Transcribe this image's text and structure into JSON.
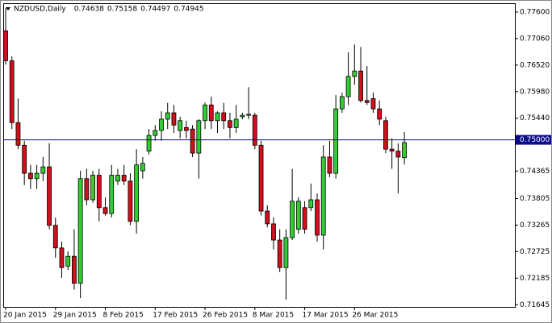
{
  "chart_data": {
    "type": "candlestick",
    "title": "NZDUSD,Daily",
    "categories": [
      "20 Jan 2015",
      null,
      null,
      null,
      null,
      null,
      null,
      null,
      "29 Jan 2015",
      null,
      null,
      null,
      null,
      null,
      null,
      null,
      "8 Feb 2015",
      null,
      null,
      null,
      null,
      null,
      null,
      null,
      "17 Feb 2015",
      null,
      null,
      null,
      null,
      null,
      null,
      null,
      "26 Feb 2015",
      null,
      null,
      null,
      null,
      null,
      null,
      null,
      "8 Mar 2015",
      null,
      null,
      null,
      null,
      null,
      null,
      null,
      "17 Mar 2015",
      null,
      null,
      null,
      null,
      null,
      null,
      null,
      "26 Mar 2015",
      null,
      null,
      null,
      null,
      null,
      null,
      null,
      null
    ],
    "open": [
      0.7722,
      0.7661,
      0.7535,
      0.7489,
      0.7432,
      0.7421,
      0.7432,
      0.7445,
      0.7326,
      0.728,
      0.7243,
      0.7263,
      0.7208,
      0.7421,
      0.7378,
      0.7428,
      0.7362,
      0.735,
      0.7416,
      0.7428,
      0.7416,
      0.7334,
      0.7437,
      0.7477,
      0.7509,
      0.7519,
      0.7542,
      0.7555,
      0.7519,
      0.7525,
      0.7522,
      0.7473,
      0.7539,
      0.7571,
      0.7539,
      0.7555,
      0.7539,
      0.7525,
      0.7547,
      0.755,
      0.755,
      0.7489,
      0.7355,
      0.7329,
      0.7296,
      0.724,
      0.7301,
      0.7318,
      0.7362,
      0.7362,
      0.7378,
      0.7306,
      0.7465,
      0.7432,
      0.7563,
      0.7588,
      0.7629,
      0.764,
      0.758,
      0.7584,
      0.7563,
      0.7539,
      0.7481,
      0.7477,
      0.74638
    ],
    "high": [
      0.7768,
      0.767,
      0.7584,
      0.7498,
      0.7449,
      0.7449,
      0.7465,
      0.7493,
      0.7342,
      0.7293,
      0.7273,
      0.7318,
      0.7437,
      0.7441,
      0.7437,
      0.7441,
      0.7383,
      0.7449,
      0.7441,
      0.7449,
      0.7432,
      0.7481,
      0.7465,
      0.7522,
      0.753,
      0.7558,
      0.7575,
      0.7571,
      0.7547,
      0.7539,
      0.753,
      0.7542,
      0.7576,
      0.7588,
      0.7558,
      0.7575,
      0.7555,
      0.7571,
      0.7555,
      0.7607,
      0.7555,
      0.7498,
      0.7367,
      0.7342,
      0.7318,
      0.7318,
      0.7441,
      0.7383,
      0.7375,
      0.7411,
      0.7391,
      0.7489,
      0.7498,
      0.7591,
      0.7596,
      0.7678,
      0.7694,
      0.7689,
      0.765,
      0.7596,
      0.758,
      0.7547,
      0.7503,
      0.7493,
      0.75158
    ],
    "low": [
      0.7653,
      0.7522,
      0.7481,
      0.7408,
      0.74,
      0.74,
      0.7416,
      0.7318,
      0.726,
      0.7219,
      0.7235,
      0.7195,
      0.7178,
      0.7367,
      0.7372,
      0.7334,
      0.7346,
      0.7342,
      0.7408,
      0.7408,
      0.7326,
      0.7309,
      0.7421,
      0.747,
      0.7498,
      0.7498,
      0.7522,
      0.7514,
      0.7503,
      0.7503,
      0.7465,
      0.7421,
      0.7522,
      0.7522,
      0.7514,
      0.7522,
      0.7503,
      0.7514,
      0.7542,
      0.7542,
      0.7481,
      0.7346,
      0.7322,
      0.7277,
      0.7231,
      0.7175,
      0.7296,
      0.7309,
      0.7309,
      0.7355,
      0.7293,
      0.7277,
      0.7424,
      0.7421,
      0.7555,
      0.7571,
      0.7612,
      0.7576,
      0.7571,
      0.7555,
      0.753,
      0.7473,
      0.7441,
      0.7391,
      0.74497
    ],
    "close": [
      0.7661,
      0.7535,
      0.7489,
      0.7432,
      0.7421,
      0.7432,
      0.7445,
      0.7326,
      0.728,
      0.724,
      0.7263,
      0.7208,
      0.7421,
      0.7378,
      0.7428,
      0.7362,
      0.735,
      0.7428,
      0.7428,
      0.7416,
      0.7334,
      0.7449,
      0.7452,
      0.7509,
      0.7519,
      0.7542,
      0.7555,
      0.753,
      0.7539,
      0.7519,
      0.7473,
      0.7539,
      0.7571,
      0.7539,
      0.7555,
      0.7539,
      0.7525,
      0.7542,
      0.755,
      0.7552,
      0.7489,
      0.7355,
      0.7329,
      0.7296,
      0.724,
      0.7301,
      0.7375,
      0.7375,
      0.7318,
      0.7378,
      0.7306,
      0.7465,
      0.7432,
      0.7563,
      0.7588,
      0.7629,
      0.764,
      0.758,
      0.7576,
      0.7563,
      0.7542,
      0.7481,
      0.7477,
      0.7465,
      0.74945
    ],
    "up_color": "#32cd32",
    "down_color": "#d0101c",
    "ylim": [
      0.716,
      0.7778
    ],
    "yticks": [
      {
        "value": 0.776,
        "label": "0.77600"
      },
      {
        "value": 0.7706,
        "label": "0.77060"
      },
      {
        "value": 0.7652,
        "label": "0.76520"
      },
      {
        "value": 0.7598,
        "label": "0.75980"
      },
      {
        "value": 0.7544,
        "label": "0.75440"
      },
      {
        "value": 0.74365,
        "label": "0.74365"
      },
      {
        "value": 0.73805,
        "label": "0.73805"
      },
      {
        "value": 0.73265,
        "label": "0.73265"
      },
      {
        "value": 0.72725,
        "label": "0.72725"
      },
      {
        "value": 0.72185,
        "label": "0.72185"
      },
      {
        "value": 0.71645,
        "label": "0.71645"
      }
    ],
    "hline": {
      "value": 0.75,
      "label": "0.75000",
      "color": "#0a0a8c"
    }
  }
}
